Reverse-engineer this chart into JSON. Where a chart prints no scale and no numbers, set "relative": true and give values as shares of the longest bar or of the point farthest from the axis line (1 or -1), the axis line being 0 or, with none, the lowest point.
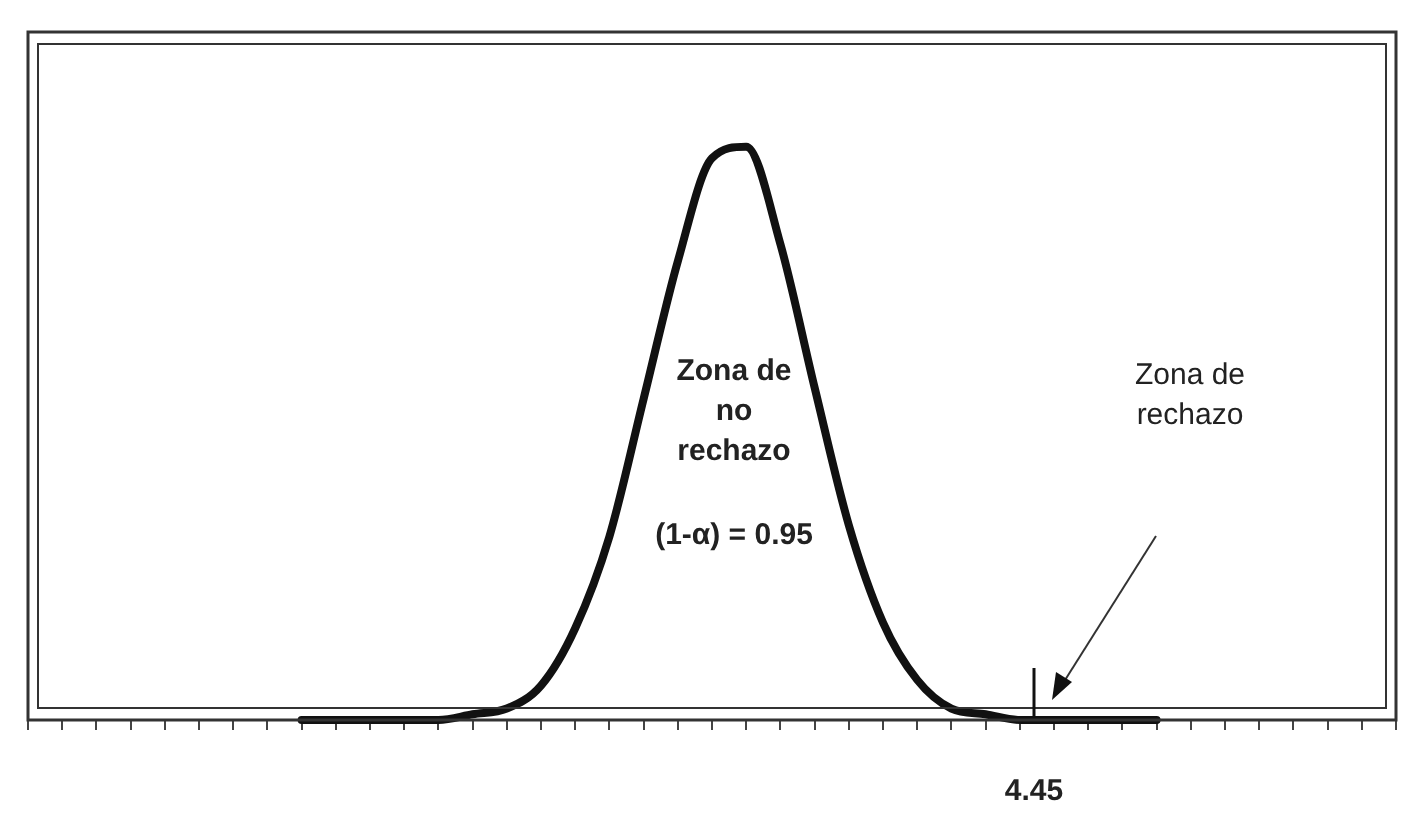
{
  "chart_data": {
    "type": "line",
    "relative": true,
    "color": "#111111",
    "categories": [
      null,
      null,
      null,
      null,
      null,
      null,
      null,
      null,
      null,
      null,
      null,
      null,
      null,
      null,
      null,
      null,
      null,
      null,
      null,
      null,
      null,
      null,
      null,
      null,
      null,
      null,
      null,
      null,
      null,
      null,
      null,
      null,
      null,
      null,
      null,
      null,
      null,
      null,
      null,
      null,
      null
    ],
    "values": [
      null,
      null,
      null,
      null,
      null,
      null,
      null,
      null,
      0,
      0,
      0,
      0,
      0,
      0.01,
      0.02,
      0.06,
      0.16,
      0.32,
      0.56,
      0.8,
      0.98,
      1,
      0.83,
      0.58,
      0.34,
      0.17,
      0.07,
      0.02,
      0.01,
      0,
      0,
      0,
      0,
      0,
      null,
      null,
      null,
      null,
      null,
      null,
      null
    ],
    "annotations": [
      "Zona de no rechazo",
      "(1-α) = 0.95",
      "Zona de rechazo",
      "4.45"
    ]
  }
}
